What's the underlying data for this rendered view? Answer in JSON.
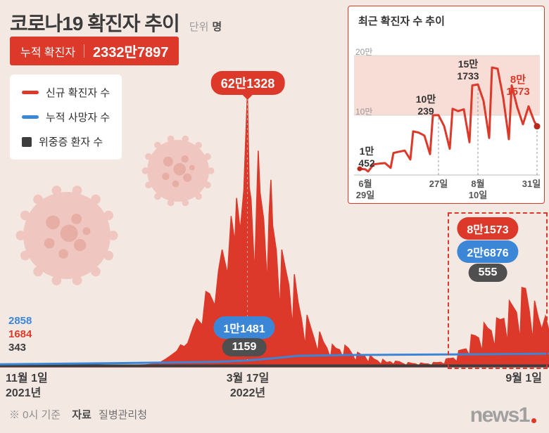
{
  "title": "코로나19 확진자 추이",
  "unit": {
    "prefix": "단위",
    "value": "명"
  },
  "cumulative_badge": {
    "label": "누적 확진자",
    "value": "2332만7897"
  },
  "legend": {
    "items": [
      {
        "label": "신규 확진자 수",
        "color": "#dc392a",
        "marker": "line"
      },
      {
        "label": "누적 사망자 수",
        "color": "#3c86d8",
        "marker": "line"
      },
      {
        "label": "위중증 환자 수",
        "color": "#3d3d3d",
        "marker": "square"
      }
    ]
  },
  "start_values": {
    "deaths": "2858",
    "new_cases": "1684",
    "critical": "343"
  },
  "badges": {
    "peak_new": "62만1328",
    "mid_deaths": "1만1481",
    "mid_critical": "1159",
    "recent_new": "8만1573",
    "recent_deaths": "2만6876",
    "recent_critical": "555"
  },
  "x_axis": {
    "t1a": "11월 1일",
    "t1b": "2021년",
    "t2a": "3월 17일",
    "t2b": "2022년",
    "t3a": "9월 1일"
  },
  "inset": {
    "title": "최근 확진자 수 추이",
    "y20": "20만",
    "y10": "10만",
    "x1a": "6월",
    "x1b": "29일",
    "x2": "27일",
    "x3a": "8월",
    "x3b": "10일",
    "x4": "31일",
    "lab1a": "1만",
    "lab1b": "452",
    "lab2a": "10만",
    "lab2b": "239",
    "lab3a": "15만",
    "lab3b": "1733",
    "lab4a": "8만",
    "lab4b": "1573"
  },
  "footnote": {
    "basis": "※ 0시 기준",
    "source_label": "자료",
    "source": "질병관리청"
  },
  "logo": {
    "text": "news1"
  },
  "colors": {
    "red": "#dc392a",
    "blue": "#3c86d8",
    "dark": "#3d3d3d",
    "bg": "#f4e8e3",
    "band": "#f8dcd6"
  },
  "chart_data": [
    {
      "id": "main",
      "type": "area",
      "title": "코로나19 확진자 추이 (2021-11-01 ~ 2022-09-01)",
      "x_unit": "day-index from 2021-11-01",
      "x_range": [
        0,
        304
      ],
      "y_unit": "만 명 (10,000 persons)",
      "ylim": [
        0,
        65
      ],
      "x_tick_labels": [
        "11월 1일 2021년",
        "3월 17일 2022년",
        "9월 1일"
      ],
      "series": [
        {
          "name": "신규 확진자 수",
          "color": "#dc392a",
          "style": "area",
          "points": [
            [
              0,
              0.17
            ],
            [
              4,
              0.21
            ],
            [
              8,
              0.2
            ],
            [
              12,
              0.26
            ],
            [
              16,
              0.24
            ],
            [
              20,
              0.3
            ],
            [
              24,
              0.29
            ],
            [
              28,
              0.38
            ],
            [
              32,
              0.42
            ],
            [
              36,
              0.5
            ],
            [
              40,
              0.55
            ],
            [
              44,
              0.75
            ],
            [
              47,
              0.6
            ],
            [
              50,
              0.71
            ],
            [
              53,
              0.55
            ],
            [
              57,
              0.46
            ],
            [
              61,
              0.38
            ],
            [
              65,
              0.35
            ],
            [
              69,
              0.4
            ],
            [
              73,
              0.37
            ],
            [
              77,
              0.43
            ],
            [
              81,
              0.5
            ],
            [
              85,
              0.64
            ],
            [
              88,
              0.85
            ],
            [
              92,
              1.83
            ],
            [
              95,
              2.7
            ],
            [
              98,
              3.6
            ],
            [
              100,
              5.0
            ],
            [
              102,
              4.6
            ],
            [
              104,
              5.4
            ],
            [
              107,
              9.0
            ],
            [
              109,
              10.9
            ],
            [
              112,
              9.5
            ],
            [
              114,
              17.1
            ],
            [
              116,
              16.6
            ],
            [
              119,
              13.9
            ],
            [
              121,
              21.9
            ],
            [
              123,
              26.6
            ],
            [
              126,
              21.0
            ],
            [
              128,
              34.2
            ],
            [
              130,
              28.3
            ],
            [
              131,
              38.3
            ],
            [
              133,
              30.9
            ],
            [
              135,
              40.0
            ],
            [
              137,
              62.13
            ],
            [
              138,
              40.7
            ],
            [
              139,
              38.1
            ],
            [
              141,
              20.9
            ],
            [
              142,
              35.3
            ],
            [
              143,
              49.0
            ],
            [
              144,
              39.5
            ],
            [
              146,
              33.5
            ],
            [
              148,
              18.7
            ],
            [
              149,
              34.7
            ],
            [
              150,
              42.4
            ],
            [
              151,
              32.0
            ],
            [
              153,
              26.4
            ],
            [
              155,
              12.7
            ],
            [
              156,
              26.6
            ],
            [
              158,
              22.4
            ],
            [
              160,
              18.5
            ],
            [
              162,
              9.0
            ],
            [
              163,
              21.0
            ],
            [
              165,
              14.8
            ],
            [
              167,
              10.7
            ],
            [
              169,
              4.7
            ],
            [
              170,
              11.8
            ],
            [
              172,
              9.0
            ],
            [
              174,
              6.4
            ],
            [
              176,
              3.4
            ],
            [
              177,
              8.0
            ],
            [
              179,
              5.7
            ],
            [
              181,
              4.3
            ],
            [
              183,
              2.0
            ],
            [
              184,
              5.1
            ],
            [
              186,
              4.2
            ],
            [
              188,
              3.9
            ],
            [
              190,
              2.0
            ],
            [
              191,
              4.9
            ],
            [
              193,
              4.2
            ],
            [
              195,
              2.9
            ],
            [
              197,
              1.3
            ],
            [
              198,
              3.3
            ],
            [
              200,
              2.8
            ],
            [
              202,
              2.4
            ],
            [
              204,
              1.0
            ],
            [
              205,
              2.6
            ],
            [
              207,
              1.8
            ],
            [
              209,
              1.4
            ],
            [
              211,
              0.6
            ],
            [
              212,
              1.7
            ],
            [
              214,
              1.0
            ],
            [
              216,
              1.2
            ],
            [
              218,
              0.6
            ],
            [
              219,
              1.3
            ],
            [
              221,
              1.2
            ],
            [
              223,
              0.8
            ],
            [
              225,
              0.4
            ],
            [
              226,
              1.0
            ],
            [
              228,
              0.8
            ],
            [
              230,
              0.7
            ],
            [
              232,
              0.33
            ],
            [
              233,
              0.9
            ],
            [
              235,
              0.7
            ],
            [
              237,
              0.67
            ],
            [
              239,
              0.36
            ],
            [
              240,
              1.0
            ],
            [
              242,
              0.95
            ],
            [
              244,
              1.05
            ],
            [
              246,
              0.6
            ],
            [
              247,
              1.8
            ],
            [
              249,
              1.9
            ],
            [
              251,
              2.0
            ],
            [
              253,
              1.2
            ],
            [
              254,
              3.7
            ],
            [
              256,
              3.9
            ],
            [
              258,
              4.1
            ],
            [
              260,
              2.6
            ],
            [
              261,
              7.3
            ],
            [
              263,
              7.1
            ],
            [
              265,
              6.6
            ],
            [
              267,
              3.5
            ],
            [
              268,
              10.0
            ],
            [
              270,
              8.8
            ],
            [
              272,
              8.2
            ],
            [
              274,
              4.4
            ],
            [
              275,
              11.1
            ],
            [
              277,
              10.7
            ],
            [
              279,
              11.0
            ],
            [
              281,
              5.5
            ],
            [
              282,
              15.0
            ],
            [
              284,
              13.7
            ],
            [
              286,
              12.4
            ],
            [
              288,
              6.2
            ],
            [
              289,
              18.0
            ],
            [
              291,
              17.8
            ],
            [
              293,
              12.9
            ],
            [
              295,
              6.0
            ],
            [
              296,
              15.0
            ],
            [
              298,
              11.3
            ],
            [
              300,
              8.5
            ],
            [
              302,
              11.5
            ],
            [
              304,
              8.16
            ]
          ]
        },
        {
          "name": "누적 사망자 수",
          "color": "#3c86d8",
          "style": "line",
          "points": [
            [
              0,
              0.2858
            ],
            [
              60,
              0.52
            ],
            [
              92,
              0.68
            ],
            [
              120,
              0.85
            ],
            [
              137,
              1.1481
            ],
            [
              150,
              1.6
            ],
            [
              165,
              2.2
            ],
            [
              190,
              2.38
            ],
            [
              220,
              2.45
            ],
            [
              250,
              2.52
            ],
            [
              275,
              2.58
            ],
            [
              304,
              2.6876
            ]
          ]
        },
        {
          "name": "위중증 환자 수",
          "color": "#3d3d3d",
          "style": "line",
          "unit": "명",
          "points": [
            [
              0,
              343
            ],
            [
              137,
              1159
            ],
            [
              304,
              555
            ]
          ]
        }
      ],
      "annotations": {
        "peak": {
          "day": 137,
          "value": 621328,
          "label": "62만1328"
        },
        "end": {
          "day": 304,
          "new": 81573,
          "deaths": 26876,
          "critical": 555
        }
      }
    },
    {
      "id": "inset",
      "type": "line",
      "title": "최근 확진자 수 추이",
      "x_unit": "day-index from 2022-06-29",
      "x_range": [
        0,
        63
      ],
      "y_unit": "만 명 (10,000 persons)",
      "ylim": [
        0,
        22
      ],
      "y_gridlines": [
        10,
        20
      ],
      "x_tick_days": [
        0,
        28,
        42,
        63
      ],
      "x_tick_labels": [
        "6월 29일",
        "27일",
        "8월 10일",
        "31일"
      ],
      "dashed_marker_days": [
        28,
        42,
        63
      ],
      "series": [
        {
          "name": "신규 확진자 수",
          "color": "#dc392a",
          "style": "line",
          "points": [
            [
              0,
              1.05
            ],
            [
              2,
              0.95
            ],
            [
              3,
              0.6
            ],
            [
              5,
              1.8
            ],
            [
              7,
              1.9
            ],
            [
              9,
              2.0
            ],
            [
              11,
              1.2
            ],
            [
              12,
              3.7
            ],
            [
              14,
              3.9
            ],
            [
              16,
              4.1
            ],
            [
              18,
              2.6
            ],
            [
              19,
              7.3
            ],
            [
              21,
              7.1
            ],
            [
              23,
              6.6
            ],
            [
              25,
              3.5
            ],
            [
              26,
              10.0
            ],
            [
              28,
              10.02
            ],
            [
              30,
              8.2
            ],
            [
              32,
              4.4
            ],
            [
              33,
              11.1
            ],
            [
              35,
              10.7
            ],
            [
              37,
              11.0
            ],
            [
              39,
              5.5
            ],
            [
              40,
              15.0
            ],
            [
              42,
              15.17
            ],
            [
              44,
              12.4
            ],
            [
              46,
              6.2
            ],
            [
              47,
              18.0
            ],
            [
              49,
              17.8
            ],
            [
              51,
              12.9
            ],
            [
              53,
              6.0
            ],
            [
              54,
              15.0
            ],
            [
              56,
              11.3
            ],
            [
              58,
              8.5
            ],
            [
              60,
              11.5
            ],
            [
              62,
              9.0
            ],
            [
              63,
              8.16
            ]
          ]
        }
      ],
      "point_labels": [
        {
          "day": 0,
          "value": 10452,
          "label": "1만 452"
        },
        {
          "day": 28,
          "value": 100239,
          "label": "10만 239"
        },
        {
          "day": 42,
          "value": 151733,
          "label": "15만 1733"
        },
        {
          "day": 63,
          "value": 81573,
          "label": "8만 1573"
        }
      ]
    }
  ]
}
